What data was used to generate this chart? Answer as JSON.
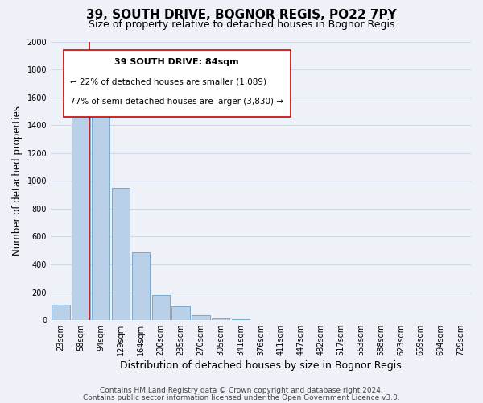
{
  "title": "39, SOUTH DRIVE, BOGNOR REGIS, PO22 7PY",
  "subtitle": "Size of property relative to detached houses in Bognor Regis",
  "xlabel": "Distribution of detached houses by size in Bognor Regis",
  "ylabel": "Number of detached properties",
  "bar_labels": [
    "23sqm",
    "58sqm",
    "94sqm",
    "129sqm",
    "164sqm",
    "200sqm",
    "235sqm",
    "270sqm",
    "305sqm",
    "341sqm",
    "376sqm",
    "411sqm",
    "447sqm",
    "482sqm",
    "517sqm",
    "553sqm",
    "588sqm",
    "623sqm",
    "659sqm",
    "694sqm",
    "729sqm"
  ],
  "bar_values": [
    110,
    1530,
    1560,
    950,
    490,
    180,
    100,
    35,
    15,
    5,
    2,
    1,
    0,
    0,
    0,
    0,
    0,
    0,
    0,
    0,
    0
  ],
  "bar_color": "#b8d0e8",
  "bar_edge_color": "#6aa0c8",
  "property_line_color": "#cc0000",
  "annotation_title": "39 SOUTH DRIVE: 84sqm",
  "annotation_line1": "← 22% of detached houses are smaller (1,089)",
  "annotation_line2": "77% of semi-detached houses are larger (3,830) →",
  "annotation_box_color": "#ffffff",
  "annotation_box_edge": "#cc0000",
  "ylim": [
    0,
    2000
  ],
  "yticks": [
    0,
    200,
    400,
    600,
    800,
    1000,
    1200,
    1400,
    1600,
    1800,
    2000
  ],
  "footer1": "Contains HM Land Registry data © Crown copyright and database right 2024.",
  "footer2": "Contains public sector information licensed under the Open Government Licence v3.0.",
  "background_color": "#eef2f8",
  "plot_bg_color": "#eef2f8",
  "grid_color": "#d0d8e8",
  "title_fontsize": 11,
  "subtitle_fontsize": 9,
  "xlabel_fontsize": 9,
  "ylabel_fontsize": 8.5,
  "tick_fontsize": 7,
  "annotation_title_fontsize": 8,
  "annotation_text_fontsize": 7.5,
  "footer_fontsize": 6.5
}
